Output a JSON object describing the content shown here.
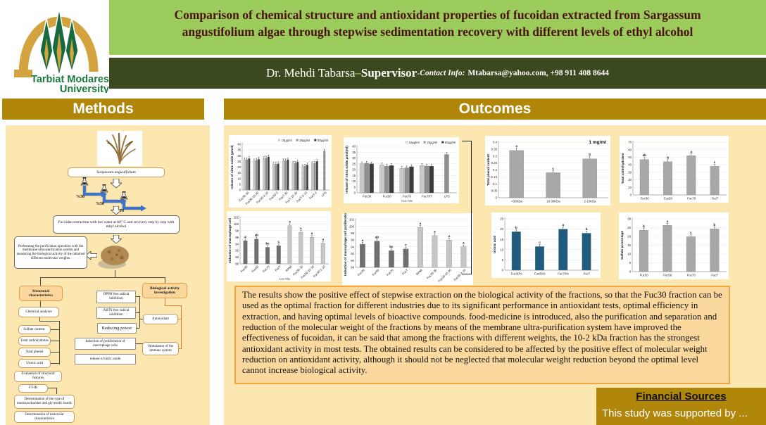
{
  "logo": {
    "line1": "Tarbiat Modares",
    "line2": "University"
  },
  "title": "Comparison of chemical structure and antioxidant properties of fucoidan extracted from Sargassum angustifolium algae through stepwise sedimentation recovery with different levels of ethyl alcohol",
  "supervisor": {
    "name": "Dr. Mehdi Tabarsa",
    "dash": "–",
    "role": "Supervisor",
    "sep": "- ",
    "contact_label": "Contact Info:",
    "contact_value": "Mtabarsa@yahoo.com, +98 911 408 8644"
  },
  "sections": {
    "methods": "Methods",
    "outcomes": "Outcomes",
    "financial": "Financial Sources",
    "financial_body": "This study was supported by ..."
  },
  "colors": {
    "gold": "#B1870B",
    "panel_yellow": "#FCE7B0",
    "title_green": "#9CCD5C",
    "olive_bar": "#3A4A1E",
    "accent_green_dash": "#8DC63F",
    "results_bg": "#FBD99E",
    "results_border": "#F0A73F",
    "blue_bars": "#1f5c80",
    "flow_blue_arrow": "#4472C4"
  },
  "methods": {
    "nodes": {
      "sargassum": "Sargassum angustifolium",
      "pct30": "%30",
      "pct50": "%50",
      "pct70": "%70",
      "extraction": "Fucoidan extraction with hot water at 60° C and recovery step by step with ethyl alcohol",
      "purification": "Performing the purification operation with the membrane ultra-purification system and measuring the biological activity of the obtained different molecular weights.",
      "structural": "Structural characteristics",
      "bio": "Biological activity investigation",
      "chemical": "Chemical analyses",
      "sulfate": "Sulfate content.",
      "carbs": "Total carbohydrates",
      "phenol": "Total phenol",
      "uronic": "Uronic acid",
      "features": "Evaluation of structural features",
      "ftir": "FT-IR",
      "mono": "Determination of the type of monosaccharides and glycosidic bonds",
      "molchar": "Determination of molecular characteristics",
      "dpph": "DPPH free radical inhibition",
      "abts": "ABTS free radical inhibition",
      "reducing": "Reducing power",
      "macrophage": "Induction of proliferation of macrophage cells",
      "nitric": "release of nitric oxide",
      "antioxidant": "Antioxidant",
      "immune": "Stimulation of the immune system"
    }
  },
  "results_text": "The results show the positive effect of stepwise extraction on the biological activity of the fractions, so that the Fuc30 fraction can be used as the optimal fraction for different industries due to its significant performance in antioxidant tests, optimal efficiency in extraction, and having optimal levels of bioactive compounds. food-medicine is introduced, also the purification and separation and reduction of the molecular weight of the fractions by means of the membrane ultra-purification system have improved the effectiveness of fucoidan, it can be said that among the fractions with different weights, the 10-2 kDa fraction has the strongest antioxidant activity in most tests. The obtained results can be considered to be affected by the positive effect of molecular weight reduction on antioxidant activity, although it should not be neglected that molecular weight reduction beyond the optimal level cannot increase biological activity.",
  "chart_data": [
    {
      "type": "bar",
      "ylabel": "release of nitric oxide (µmol)",
      "ylim": [
        0,
        40
      ],
      "ystep": 5,
      "legend": true,
      "rotate": true,
      "categories": [
        "Fuc30-30",
        "Fuc30-10-30",
        "Fuc30-2-10",
        "Fuc30-2",
        "FucT-30",
        "FucT-10-30",
        "FucT-2-10",
        "FucT-2",
        "LPS"
      ],
      "series": [
        {
          "name": "10µg/ml",
          "color": "#c9c9c9",
          "values": [
            26.5,
            25.5,
            27.5,
            22.5,
            25.5,
            23.5,
            20.5,
            23,
            null
          ]
        },
        {
          "name": "25µg/ml",
          "color": "#8f8f8f",
          "values": [
            26.5,
            26,
            28,
            22.5,
            25.5,
            23.5,
            21,
            23.5,
            34
          ]
        },
        {
          "name": "50µg/ml",
          "color": "#3b3b3b",
          "values": [
            27.5,
            27,
            29,
            23,
            26.5,
            24.5,
            22,
            25,
            null
          ]
        }
      ]
    },
    {
      "type": "bar",
      "ylabel": "release of nitric oxide µmol(ml)",
      "xlabel": "Axis Title",
      "ylim": [
        0,
        40
      ],
      "ystep": 5,
      "legend": true,
      "rotate": false,
      "categories": [
        "Fuc30",
        "Fuc50",
        "Fuc70",
        "Fuc70T",
        "LPS"
      ],
      "series": [
        {
          "name": "10µg/ml",
          "color": "#c9c9c9",
          "values": [
            25,
            24,
            21,
            23.5,
            null
          ]
        },
        {
          "name": "25µg/ml",
          "color": "#8f8f8f",
          "values": [
            25.5,
            23,
            21.5,
            23,
            33
          ]
        },
        {
          "name": "50µg/ml",
          "color": "#3b3b3b",
          "values": [
            25,
            23.5,
            22.5,
            23,
            null
          ]
        }
      ]
    },
    {
      "type": "bar",
      "ylabel": "Induction of macrophage cell",
      "xlabel": "Axis Title",
      "ylim": [
        88,
        102
      ],
      "ystep": 2,
      "rotate": true,
      "categories": [
        "Fuc30",
        "Fuc50",
        "Fuc70",
        "FucT",
        "RPMI",
        "Fuc30-30",
        "Fuc30-10-30",
        "Fuc30-2-10"
      ],
      "values": [
        95,
        95.5,
        93,
        93.5,
        99.5,
        97.5,
        96,
        94.2
      ],
      "letters": [
        "a",
        "ab",
        "bc",
        "c",
        "a",
        "a",
        "a",
        "a"
      ],
      "barColors": [
        "#6f6f6f",
        "#6f6f6f",
        "#6f6f6f",
        "#6f6f6f",
        "#c6c6c6",
        "#c6c6c6",
        "#c6c6c6",
        "#c6c6c6"
      ]
    },
    {
      "type": "bar",
      "ylabel": "Induction of macrophage cell proliferation",
      "ylim": [
        88,
        102
      ],
      "ystep": 2,
      "rotate": true,
      "categories": [
        "Fuc30",
        "Fuc50",
        "Fuc70",
        "FucT",
        "RPMI",
        "Fuc30-30",
        "Fuc30-10-30",
        "Fuc30-2-10"
      ],
      "values": [
        94.8,
        95.7,
        92.9,
        93.4,
        99.7,
        97.3,
        96,
        94
      ],
      "letters": [
        "a",
        "ab",
        "bc",
        "c",
        "a",
        "a",
        "a",
        "a"
      ],
      "barColors": [
        "#6f6f6f",
        "#6f6f6f",
        "#6f6f6f",
        "#6f6f6f",
        "#c6c6c6",
        "#c6c6c6",
        "#c6c6c6",
        "#c6c6c6"
      ]
    },
    {
      "type": "bar",
      "ylabel": "Total phenol content",
      "annotation": "1 mg/ml",
      "ylim": [
        0,
        0.4
      ],
      "ystep": 0.05,
      "categories": [
        ">30KDa",
        "10-30KDa",
        "2-10KDa"
      ],
      "values": [
        0.34,
        0.18,
        0.28
      ],
      "letters": [
        "a",
        "c",
        "b"
      ],
      "color": "#a8a8a8"
    },
    {
      "type": "bar",
      "ylabel": "Total carbohydrates",
      "ylim": [
        0,
        70
      ],
      "ystep": 10,
      "categories": [
        "Fuc30",
        "Fuc50",
        "Fuc70",
        "FucT"
      ],
      "values": [
        47,
        44,
        52,
        38
      ],
      "letters": [
        "ab",
        "b",
        "a",
        "c"
      ],
      "color": "#a8a8a8"
    },
    {
      "type": "bar",
      "ylabel": "Uronic acid",
      "ylim": [
        0,
        25
      ],
      "ystep": 5,
      "categories": [
        "Fuc30%",
        "Fuc50%",
        "Fuc70%",
        "FucT"
      ],
      "values": [
        18.7,
        11.5,
        20,
        18
      ],
      "letters": [
        "b",
        "c",
        "a",
        "b"
      ],
      "color": "#1f5c80"
    },
    {
      "type": "bar",
      "ylabel": "Sulfate percentage",
      "ylim": [
        0,
        30
      ],
      "ystep": 5,
      "categories": [
        "Fuc30",
        "Fuc50",
        "Fuc70",
        "FucT"
      ],
      "values": [
        23.5,
        26.3,
        19.8,
        24.3
      ],
      "letters": [
        "b",
        "a",
        "c",
        "b"
      ],
      "color": "#a8a8a8"
    }
  ]
}
